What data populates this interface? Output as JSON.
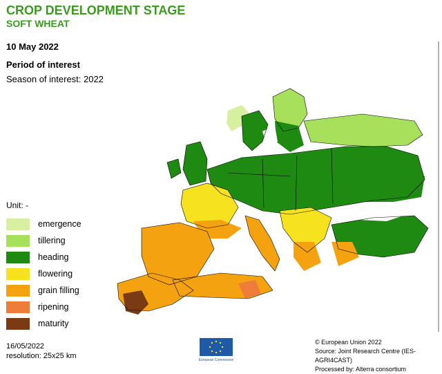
{
  "header": {
    "title": "CROP DEVELOPMENT STAGE",
    "subtitle": "SOFT WHEAT",
    "date": "10 May 2022",
    "period_label": "Period of interest",
    "season_label": "Season of interest: 2022"
  },
  "colors": {
    "title": "#3a9b1e",
    "emergence": "#d6f0a0",
    "tillering": "#a7e05a",
    "heading": "#1f8a12",
    "flowering": "#f6e21e",
    "grain_filling": "#f5a211",
    "ripening": "#ef7d3a",
    "maturity": "#7a3a12",
    "border": "#000000"
  },
  "legend": {
    "unit": "Unit: -",
    "items": [
      {
        "label": "emergence",
        "color": "#d6f0a0"
      },
      {
        "label": "tillering",
        "color": "#a7e05a"
      },
      {
        "label": "heading",
        "color": "#1f8a12"
      },
      {
        "label": "flowering",
        "color": "#f6e21e"
      },
      {
        "label": "grain filling",
        "color": "#f5a211"
      },
      {
        "label": "ripening",
        "color": "#ef7d3a"
      },
      {
        "label": "maturity",
        "color": "#7a3a12"
      }
    ]
  },
  "footer": {
    "date": "16/05/2022",
    "resolution": "resolution:  25x25 km",
    "copyright": "© European Union 2022",
    "source": "Source: Joint Research Centre (IES-AGRI4CAST)",
    "processed": "Processed by: Alterra consortium",
    "logo_text": "European Commission"
  }
}
